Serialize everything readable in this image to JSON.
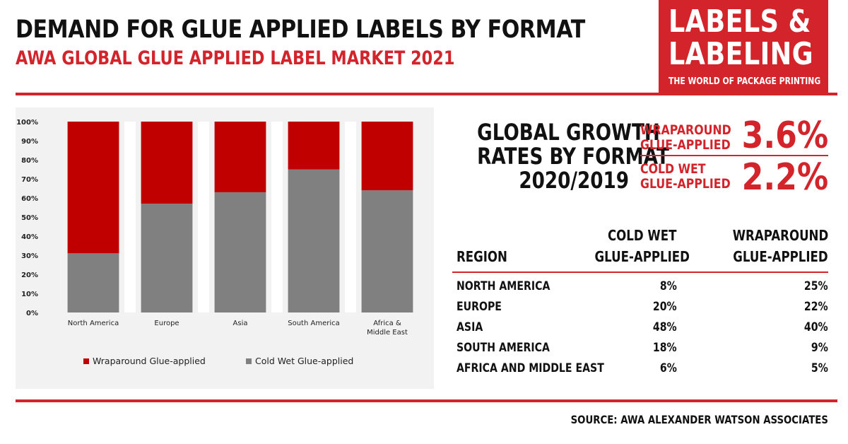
{
  "header": {
    "title": "DEMAND FOR GLUE APPLIED LABELS BY FORMAT",
    "subtitle": "AWA GLOBAL GLUE APPLIED LABEL MARKET 2021"
  },
  "logo": {
    "line1": "LABELS &",
    "line2": "LABELING",
    "tagline": "THE WORLD OF PACKAGE PRINTING"
  },
  "growth": {
    "title_lines": [
      "GLOBAL GROWTH",
      "RATES BY FORMAT",
      "2020/2019"
    ],
    "items": [
      {
        "label_lines": [
          "WRAPAROUND",
          "GLUE-APPLIED"
        ],
        "value": "3.6%"
      },
      {
        "label_lines": [
          "COLD WET",
          "GLUE-APPLIED"
        ],
        "value": "2.2%"
      }
    ]
  },
  "table": {
    "headers": {
      "region": "REGION",
      "cold_lines": [
        "COLD WET",
        "GLUE-APPLIED"
      ],
      "wrap_lines": [
        "WRAPAROUND",
        "GLUE-APPLIED"
      ]
    },
    "rows": [
      {
        "region": "NORTH AMERICA",
        "cold": "8%",
        "wrap": "25%"
      },
      {
        "region": "EUROPE",
        "cold": "20%",
        "wrap": "22%"
      },
      {
        "region": "ASIA",
        "cold": "48%",
        "wrap": "40%"
      },
      {
        "region": "SOUTH AMERICA",
        "cold": "18%",
        "wrap": "9%"
      },
      {
        "region": "AFRICA AND MIDDLE EAST",
        "cold": "6%",
        "wrap": "5%"
      }
    ]
  },
  "source": "SOURCE: AWA ALEXANDER WATSON ASSOCIATES",
  "colors": {
    "brand_red": "#d3242b",
    "wraparound": "#c00000",
    "cold_wet": "#808080",
    "chart_bg": "#f2f2f2"
  },
  "chart_data": {
    "type": "bar",
    "stacked": true,
    "categories": [
      "North America",
      "Europe",
      "Asia",
      "South America",
      "Africa & Middle East"
    ],
    "series": [
      {
        "name": "Cold Wet Glue-applied",
        "values": [
          31,
          57,
          63,
          75,
          64
        ],
        "color": "#808080"
      },
      {
        "name": "Wraparound Glue-applied",
        "values": [
          69,
          43,
          37,
          25,
          36
        ],
        "color": "#c00000"
      }
    ],
    "y_ticks": [
      "0%",
      "10%",
      "20%",
      "30%",
      "40%",
      "50%",
      "60%",
      "70%",
      "80%",
      "90%",
      "100%"
    ],
    "ylim": [
      0,
      100
    ],
    "legend": [
      "Wraparound Glue-applied",
      "Cold Wet Glue-applied"
    ],
    "legend_position": "bottom",
    "grid": false
  }
}
